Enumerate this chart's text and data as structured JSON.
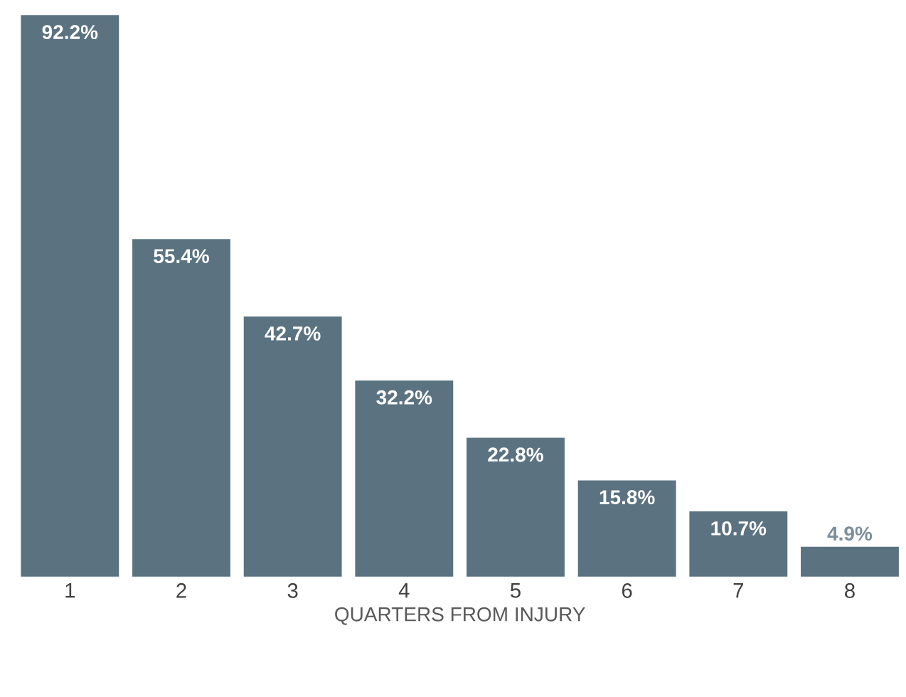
{
  "chart_data": {
    "type": "bar",
    "xlabel": "QUARTERS FROM INJURY",
    "categories": [
      "1",
      "2",
      "3",
      "4",
      "5",
      "6",
      "7",
      "8"
    ],
    "values": [
      92.2,
      55.4,
      42.7,
      32.2,
      22.8,
      15.8,
      10.7,
      4.9
    ],
    "value_labels": [
      "92.2%",
      "55.4%",
      "42.7%",
      "32.2%",
      "22.8%",
      "15.8%",
      "10.7%",
      "4.9%"
    ],
    "color": "#5b7281"
  }
}
